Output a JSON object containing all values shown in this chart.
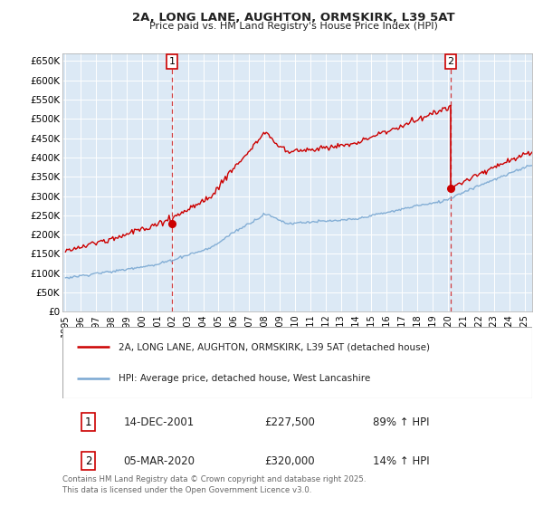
{
  "title": "2A, LONG LANE, AUGHTON, ORMSKIRK, L39 5AT",
  "subtitle": "Price paid vs. HM Land Registry's House Price Index (HPI)",
  "background_color": "#ffffff",
  "plot_bg_color": "#dce9f5",
  "grid_color": "#ffffff",
  "sale1_date": "14-DEC-2001",
  "sale1_price": 227500,
  "sale1_hpi_text": "89% ↑ HPI",
  "sale1_x": 2001.96,
  "sale2_date": "05-MAR-2020",
  "sale2_price": 320000,
  "sale2_hpi_text": "14% ↑ HPI",
  "sale2_x": 2020.18,
  "red_line_color": "#cc0000",
  "blue_line_color": "#7aa8d2",
  "dashed_line_color": "#cc0000",
  "marker_color": "#cc0000",
  "legend_label_red": "2A, LONG LANE, AUGHTON, ORMSKIRK, L39 5AT (detached house)",
  "legend_label_blue": "HPI: Average price, detached house, West Lancashire",
  "footer": "Contains HM Land Registry data © Crown copyright and database right 2025.\nThis data is licensed under the Open Government Licence v3.0.",
  "ylim": [
    0,
    670000
  ],
  "xlim": [
    1994.8,
    2025.5
  ],
  "yticks": [
    0,
    50000,
    100000,
    150000,
    200000,
    250000,
    300000,
    350000,
    400000,
    450000,
    500000,
    550000,
    600000,
    650000
  ],
  "ytick_labels": [
    "£0",
    "£50K",
    "£100K",
    "£150K",
    "£200K",
    "£250K",
    "£300K",
    "£350K",
    "£400K",
    "£450K",
    "£500K",
    "£550K",
    "£600K",
    "£650K"
  ],
  "xticks": [
    1995,
    1996,
    1997,
    1998,
    1999,
    2000,
    2001,
    2002,
    2003,
    2004,
    2005,
    2006,
    2007,
    2008,
    2009,
    2010,
    2011,
    2012,
    2013,
    2014,
    2015,
    2016,
    2017,
    2018,
    2019,
    2020,
    2021,
    2022,
    2023,
    2024,
    2025
  ]
}
